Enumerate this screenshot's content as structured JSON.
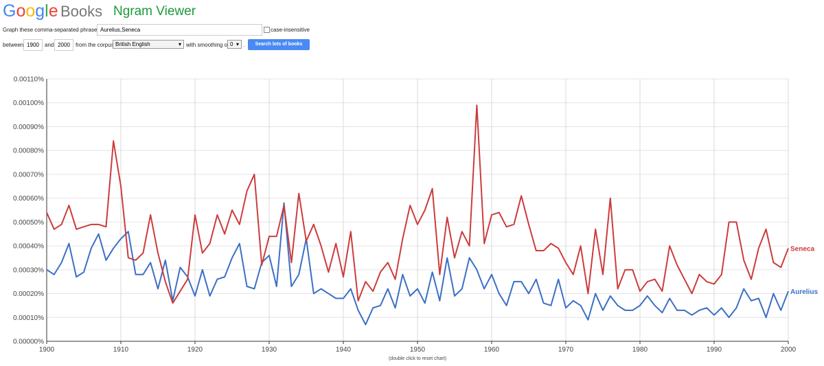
{
  "header": {
    "logo": "Google",
    "logo_product": "Books",
    "app_title": "Ngram Viewer"
  },
  "form": {
    "phrases_label": "Graph these comma-separated phrases:",
    "phrases": "Aurelius,Seneca",
    "case_insensitive": "case-insensitive",
    "between": "between",
    "start_year": "1900",
    "and": "and",
    "end_year": "2000",
    "corpus_label": "from the corpus",
    "corpus": "British English",
    "smoothing_label": "with smoothing of",
    "smoothing": "0",
    "period": ".",
    "button": "Search lots of books"
  },
  "chart_data": {
    "type": "line",
    "x": [
      1900,
      1901,
      1902,
      1903,
      1904,
      1905,
      1906,
      1907,
      1908,
      1909,
      1910,
      1911,
      1912,
      1913,
      1914,
      1915,
      1916,
      1917,
      1918,
      1919,
      1920,
      1921,
      1922,
      1923,
      1924,
      1925,
      1926,
      1927,
      1928,
      1929,
      1930,
      1931,
      1932,
      1933,
      1934,
      1935,
      1936,
      1937,
      1938,
      1939,
      1940,
      1941,
      1942,
      1943,
      1944,
      1945,
      1946,
      1947,
      1948,
      1949,
      1950,
      1951,
      1952,
      1953,
      1954,
      1955,
      1956,
      1957,
      1958,
      1959,
      1960,
      1961,
      1962,
      1963,
      1964,
      1965,
      1966,
      1967,
      1968,
      1969,
      1970,
      1971,
      1972,
      1973,
      1974,
      1975,
      1976,
      1977,
      1978,
      1979,
      1980,
      1981,
      1982,
      1983,
      1984,
      1985,
      1986,
      1987,
      1988,
      1989,
      1990,
      1991,
      1992,
      1993,
      1994,
      1995,
      1996,
      1997,
      1998,
      1999,
      2000
    ],
    "series": [
      {
        "name": "Aurelius",
        "color": "#3b6fc4",
        "values": [
          0.0003,
          0.00028,
          0.00033,
          0.00041,
          0.00027,
          0.00029,
          0.00039,
          0.00045,
          0.00034,
          0.00039,
          0.00043,
          0.00046,
          0.00028,
          0.00028,
          0.00033,
          0.00022,
          0.00034,
          0.00017,
          0.00031,
          0.00027,
          0.00019,
          0.0003,
          0.00019,
          0.00026,
          0.00027,
          0.00035,
          0.00041,
          0.00023,
          0.00022,
          0.00033,
          0.00036,
          0.00023,
          0.00058,
          0.00023,
          0.00028,
          0.00043,
          0.0002,
          0.00022,
          0.0002,
          0.00018,
          0.00018,
          0.00022,
          0.00013,
          7e-05,
          0.00014,
          0.00015,
          0.00022,
          0.00014,
          0.00028,
          0.00019,
          0.00022,
          0.00016,
          0.00029,
          0.00017,
          0.00035,
          0.00019,
          0.00022,
          0.00035,
          0.0003,
          0.00022,
          0.00028,
          0.0002,
          0.00015,
          0.00025,
          0.00025,
          0.0002,
          0.00026,
          0.00016,
          0.00015,
          0.00026,
          0.00014,
          0.00017,
          0.00015,
          9e-05,
          0.0002,
          0.00013,
          0.00019,
          0.00015,
          0.00013,
          0.00013,
          0.00015,
          0.00019,
          0.00015,
          0.00012,
          0.00018,
          0.00013,
          0.00013,
          0.00011,
          0.00013,
          0.00014,
          0.00011,
          0.00014,
          0.0001,
          0.00014,
          0.00022,
          0.00017,
          0.00018,
          0.0001,
          0.0002,
          0.00013,
          0.00021
        ]
      },
      {
        "name": "Seneca",
        "color": "#cc3b3b",
        "values": [
          0.00054,
          0.00047,
          0.00049,
          0.00057,
          0.00047,
          0.00048,
          0.00049,
          0.00049,
          0.00048,
          0.00084,
          0.00065,
          0.00035,
          0.00034,
          0.00037,
          0.00053,
          0.00037,
          0.00025,
          0.00016,
          0.00021,
          0.00026,
          0.00053,
          0.00037,
          0.00041,
          0.00053,
          0.00045,
          0.00055,
          0.00049,
          0.00063,
          0.0007,
          0.00032,
          0.00044,
          0.00044,
          0.00057,
          0.00033,
          0.00062,
          0.00042,
          0.00049,
          0.0004,
          0.00029,
          0.00041,
          0.00027,
          0.00046,
          0.00017,
          0.00025,
          0.00021,
          0.00029,
          0.00033,
          0.00026,
          0.00043,
          0.00057,
          0.00049,
          0.00055,
          0.00064,
          0.00028,
          0.00052,
          0.00035,
          0.00046,
          0.0004,
          0.00099,
          0.00041,
          0.00053,
          0.00054,
          0.00048,
          0.00049,
          0.00061,
          0.00049,
          0.00038,
          0.00038,
          0.00041,
          0.00039,
          0.00033,
          0.00028,
          0.0004,
          0.0002,
          0.00047,
          0.00028,
          0.0006,
          0.00022,
          0.0003,
          0.0003,
          0.00021,
          0.00025,
          0.00026,
          0.00021,
          0.0004,
          0.00032,
          0.00026,
          0.0002,
          0.00028,
          0.00025,
          0.00024,
          0.00028,
          0.0005,
          0.0005,
          0.00034,
          0.00026,
          0.00039,
          0.00047,
          0.00033,
          0.00031,
          0.00039
        ]
      }
    ],
    "xlim": [
      1900,
      2000
    ],
    "xticks": [
      1900,
      1910,
      1920,
      1930,
      1940,
      1950,
      1960,
      1970,
      1980,
      1990,
      2000
    ],
    "ylim": [
      0,
      0.0011
    ],
    "yticks": [
      {
        "value": 0,
        "label": "0.00000%"
      },
      {
        "value": 0.0001,
        "label": "0.00010%"
      },
      {
        "value": 0.0002,
        "label": "0.00020%"
      },
      {
        "value": 0.0003,
        "label": "0.00030%"
      },
      {
        "value": 0.0004,
        "label": "0.00040%"
      },
      {
        "value": 0.0005,
        "label": "0.00050%"
      },
      {
        "value": 0.0006,
        "label": "0.00060%"
      },
      {
        "value": 0.0007,
        "label": "0.00070%"
      },
      {
        "value": 0.0008,
        "label": "0.00080%"
      },
      {
        "value": 0.0009,
        "label": "0.00090%"
      },
      {
        "value": 0.001,
        "label": "0.00100%"
      },
      {
        "value": 0.0011,
        "label": "0.00110%"
      }
    ],
    "grid": true,
    "note": "(double click to reset chart)"
  }
}
